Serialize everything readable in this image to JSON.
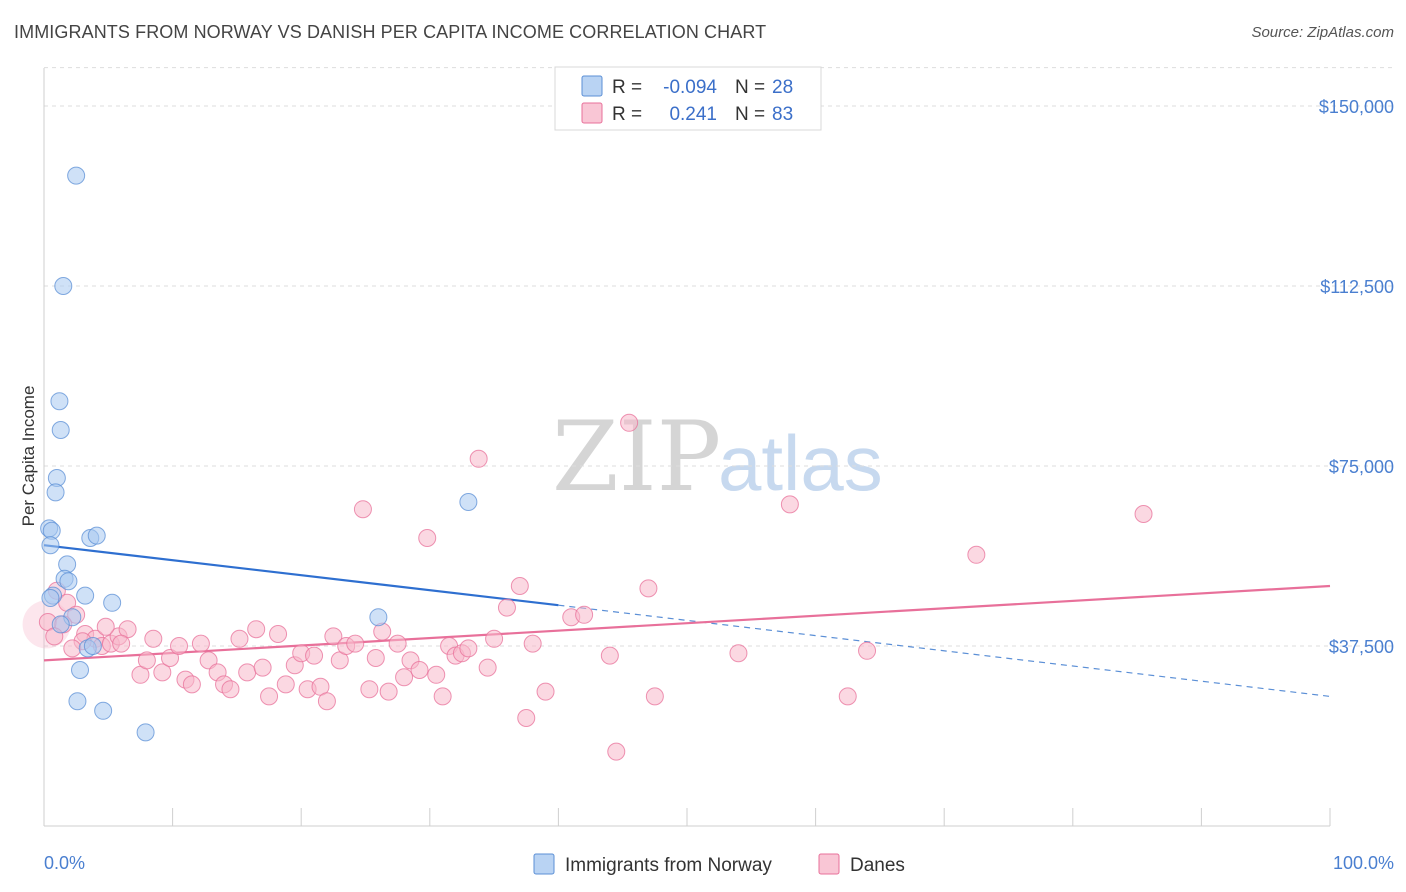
{
  "header": {
    "title": "IMMIGRANTS FROM NORWAY VS DANISH PER CAPITA INCOME CORRELATION CHART",
    "source": "Source: ZipAtlas.com"
  },
  "watermark": {
    "zip": "ZIP",
    "atlas": "atlas"
  },
  "legend": {
    "rows": [
      {
        "r_label": "R =",
        "r_value": "-0.094",
        "n_label": "N =",
        "n_value": "28",
        "color": "#a8c8f0"
      },
      {
        "r_label": "R =",
        "r_value": "0.241",
        "n_label": "N =",
        "n_value": "83",
        "color": "#f7b8cb"
      }
    ]
  },
  "bottom_legend": [
    {
      "label": "Immigrants from Norway",
      "color": "#a8c8f0"
    },
    {
      "label": "Danes",
      "color": "#f7b8cb"
    }
  ],
  "chart_data": {
    "type": "scatter",
    "title": "IMMIGRANTS FROM NORWAY VS DANISH PER CAPITA INCOME CORRELATION CHART",
    "xlabel": "",
    "ylabel": "Per Capita Income",
    "xlim": [
      0,
      100
    ],
    "ylim": [
      0,
      160000
    ],
    "x_tick_labels": [
      "0.0%",
      "100.0%"
    ],
    "y_ticks": [
      37500,
      75000,
      112500,
      150000
    ],
    "y_tick_labels": [
      "$37,500",
      "$75,000",
      "$112,500",
      "$150,000"
    ],
    "grid": true,
    "legend_position": "top-center",
    "series": [
      {
        "name": "Immigrants from Norway",
        "color": "#5b8fd6",
        "fill": "#a8c8f0",
        "r": -0.094,
        "n": 28,
        "trend": {
          "x0": 0,
          "y0": 58500,
          "x1": 40,
          "y1": 46000,
          "dash_to_x": 100,
          "dash_to_y": 27000
        },
        "points": [
          [
            2.5,
            135500
          ],
          [
            1.5,
            112500
          ],
          [
            1.2,
            88500
          ],
          [
            1.3,
            82500
          ],
          [
            1.0,
            72500
          ],
          [
            0.9,
            69500
          ],
          [
            0.4,
            62000
          ],
          [
            0.6,
            61500
          ],
          [
            0.5,
            58500
          ],
          [
            3.6,
            60000
          ],
          [
            4.1,
            60500
          ],
          [
            1.8,
            54500
          ],
          [
            1.6,
            51500
          ],
          [
            1.9,
            51000
          ],
          [
            0.7,
            48000
          ],
          [
            0.5,
            47500
          ],
          [
            3.2,
            48000
          ],
          [
            5.3,
            46500
          ],
          [
            2.2,
            43500
          ],
          [
            1.3,
            42000
          ],
          [
            3.4,
            37000
          ],
          [
            2.8,
            32500
          ],
          [
            2.6,
            26000
          ],
          [
            4.6,
            24000
          ],
          [
            7.9,
            19500
          ],
          [
            33.0,
            67500
          ],
          [
            26.0,
            43500
          ],
          [
            3.8,
            37500
          ]
        ]
      },
      {
        "name": "Danes",
        "color": "#e8709a",
        "fill": "#f7b8cb",
        "r": 0.241,
        "n": 83,
        "trend": {
          "x0": 0,
          "y0": 34500,
          "x1": 100,
          "y1": 50000
        },
        "points": [
          [
            0.3,
            42500
          ],
          [
            1.0,
            49000
          ],
          [
            1.8,
            46500
          ],
          [
            2.5,
            44000
          ],
          [
            3.2,
            40000
          ],
          [
            4.0,
            39000
          ],
          [
            4.5,
            37500
          ],
          [
            5.2,
            38000
          ],
          [
            5.8,
            39500
          ],
          [
            6.5,
            41000
          ],
          [
            7.5,
            31500
          ],
          [
            8.0,
            34500
          ],
          [
            8.5,
            39000
          ],
          [
            9.2,
            32000
          ],
          [
            9.8,
            35000
          ],
          [
            10.5,
            37500
          ],
          [
            11.0,
            30500
          ],
          [
            11.5,
            29500
          ],
          [
            12.2,
            38000
          ],
          [
            12.8,
            34500
          ],
          [
            13.5,
            32000
          ],
          [
            14.0,
            29500
          ],
          [
            14.5,
            28500
          ],
          [
            15.2,
            39000
          ],
          [
            15.8,
            32000
          ],
          [
            16.5,
            41000
          ],
          [
            17.0,
            33000
          ],
          [
            17.5,
            27000
          ],
          [
            18.2,
            40000
          ],
          [
            18.8,
            29500
          ],
          [
            19.5,
            33500
          ],
          [
            20.0,
            36000
          ],
          [
            20.5,
            28500
          ],
          [
            21.0,
            35500
          ],
          [
            21.5,
            29000
          ],
          [
            22.0,
            26000
          ],
          [
            22.5,
            39500
          ],
          [
            23.0,
            34500
          ],
          [
            23.5,
            37500
          ],
          [
            24.2,
            38000
          ],
          [
            24.8,
            66000
          ],
          [
            25.3,
            28500
          ],
          [
            25.8,
            35000
          ],
          [
            26.3,
            40500
          ],
          [
            26.8,
            28000
          ],
          [
            27.5,
            38000
          ],
          [
            28.0,
            31000
          ],
          [
            28.5,
            34500
          ],
          [
            29.2,
            32500
          ],
          [
            29.8,
            60000
          ],
          [
            30.5,
            31500
          ],
          [
            31.0,
            27000
          ],
          [
            31.5,
            37500
          ],
          [
            32.0,
            35500
          ],
          [
            32.5,
            36000
          ],
          [
            33.0,
            37000
          ],
          [
            33.8,
            76500
          ],
          [
            34.5,
            33000
          ],
          [
            35.0,
            39000
          ],
          [
            36.0,
            45500
          ],
          [
            37.0,
            50000
          ],
          [
            37.5,
            22500
          ],
          [
            38.0,
            38000
          ],
          [
            39.0,
            28000
          ],
          [
            41.0,
            43500
          ],
          [
            42.0,
            44000
          ],
          [
            44.0,
            35500
          ],
          [
            44.5,
            15500
          ],
          [
            45.5,
            84000
          ],
          [
            47.0,
            49500
          ],
          [
            47.5,
            27000
          ],
          [
            54.0,
            36000
          ],
          [
            58.0,
            67000
          ],
          [
            62.5,
            27000
          ],
          [
            64.0,
            36500
          ],
          [
            72.5,
            56500
          ],
          [
            85.5,
            65000
          ],
          [
            1.5,
            42000
          ],
          [
            3.0,
            38500
          ],
          [
            2.2,
            37000
          ],
          [
            0.8,
            39500
          ],
          [
            4.8,
            41500
          ],
          [
            6.0,
            38000
          ]
        ]
      }
    ]
  }
}
